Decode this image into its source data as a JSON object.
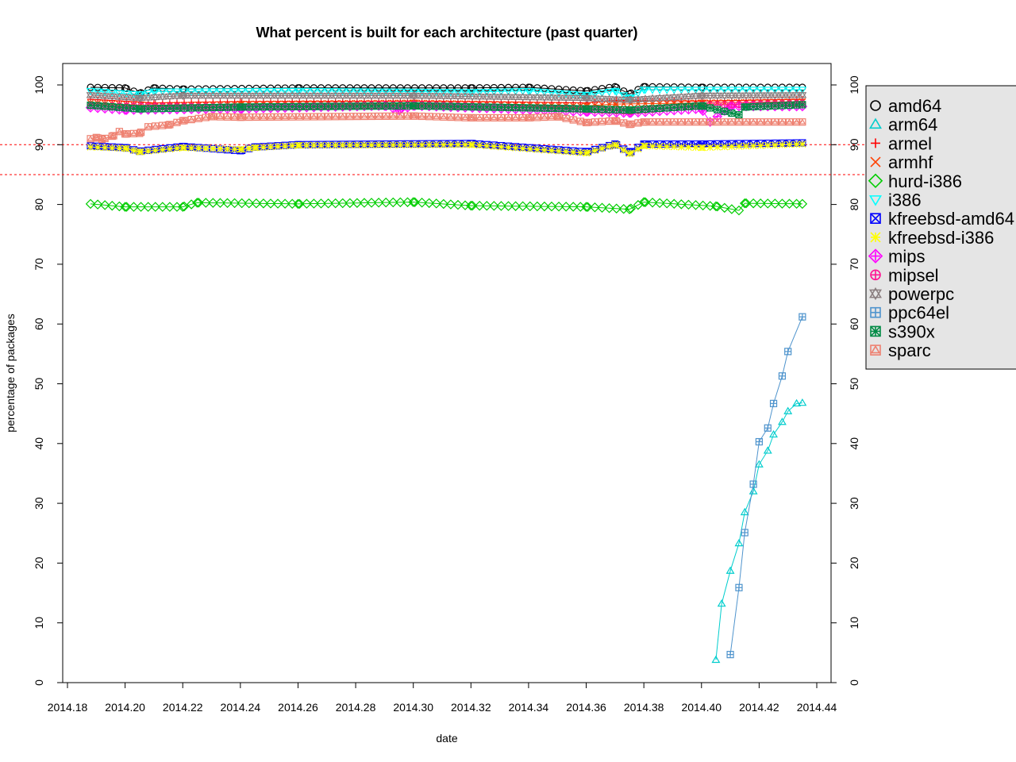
{
  "chart_data": {
    "type": "line",
    "title": "What percent is built for each architecture (past quarter)",
    "xlabel": "date",
    "ylabel": "percentage of packages",
    "xlim": [
      2014.18,
      2014.44
    ],
    "ylim": [
      0,
      100
    ],
    "x_ticks": [
      "2014.18",
      "2014.20",
      "2014.22",
      "2014.24",
      "2014.26",
      "2014.28",
      "2014.30",
      "2014.32",
      "2014.34",
      "2014.36",
      "2014.38",
      "2014.40",
      "2014.42",
      "2014.44"
    ],
    "y_ticks": [
      "0",
      "10",
      "20",
      "30",
      "40",
      "50",
      "60",
      "70",
      "80",
      "90",
      "100"
    ],
    "reference_lines": [
      90,
      85
    ],
    "reference_line_color": "#ff0000",
    "legend_position": "right, outside plot",
    "grid": false,
    "series": [
      {
        "name": "amd64",
        "color": "#000000",
        "marker": "circle",
        "x": [
          2014.188,
          2014.2,
          2014.205,
          2014.21,
          2014.22,
          2014.26,
          2014.32,
          2014.34,
          2014.36,
          2014.37,
          2014.375,
          2014.38,
          2014.4,
          2014.435
        ],
        "y": [
          99.6,
          99.5,
          98.6,
          99.5,
          99.3,
          99.5,
          99.5,
          99.6,
          99.0,
          99.7,
          98.5,
          99.7,
          99.6,
          99.6
        ]
      },
      {
        "name": "arm64",
        "color": "#00cdcd",
        "marker": "triangle-up",
        "x": [
          2014.405,
          2014.407,
          2014.41,
          2014.413,
          2014.415,
          2014.418,
          2014.42,
          2014.423,
          2014.425,
          2014.428,
          2014.43,
          2014.433,
          2014.435
        ],
        "y": [
          3.8,
          13.2,
          18.7,
          23.3,
          28.5,
          32.0,
          36.5,
          38.8,
          41.5,
          43.6,
          45.4,
          46.7,
          46.8
        ]
      },
      {
        "name": "armel",
        "color": "#ff0000",
        "marker": "plus",
        "x": [
          2014.188,
          2014.21,
          2014.24,
          2014.3,
          2014.36,
          2014.37,
          2014.4,
          2014.435
        ],
        "y": [
          97.6,
          97.0,
          97.2,
          97.3,
          97.0,
          97.4,
          97.3,
          97.6
        ]
      },
      {
        "name": "armhf",
        "color": "#ff4000",
        "marker": "x",
        "x": [
          2014.188,
          2014.21,
          2014.24,
          2014.3,
          2014.36,
          2014.37,
          2014.4,
          2014.435
        ],
        "y": [
          97.0,
          96.5,
          96.8,
          97.0,
          96.5,
          96.8,
          97.0,
          97.2
        ]
      },
      {
        "name": "hurd-i386",
        "color": "#00cd00",
        "marker": "diamond",
        "x": [
          2014.188,
          2014.2,
          2014.22,
          2014.225,
          2014.26,
          2014.3,
          2014.32,
          2014.36,
          2014.375,
          2014.38,
          2014.405,
          2014.413,
          2014.415,
          2014.435
        ],
        "y": [
          80.1,
          79.6,
          79.6,
          80.3,
          80.1,
          80.4,
          79.8,
          79.6,
          79.2,
          80.4,
          79.7,
          79.0,
          80.2,
          80.1
        ]
      },
      {
        "name": "i386",
        "color": "#00ffff",
        "marker": "triangle-down",
        "x": [
          2014.188,
          2014.205,
          2014.21,
          2014.26,
          2014.32,
          2014.34,
          2014.36,
          2014.37,
          2014.375,
          2014.38,
          2014.435
        ],
        "y": [
          99.0,
          98.4,
          98.9,
          99.0,
          98.8,
          99.0,
          98.3,
          99.0,
          97.8,
          99.2,
          99.2
        ]
      },
      {
        "name": "kfreebsd-amd64",
        "color": "#0000ff",
        "marker": "box-x",
        "x": [
          2014.188,
          2014.2,
          2014.205,
          2014.22,
          2014.24,
          2014.245,
          2014.26,
          2014.32,
          2014.36,
          2014.37,
          2014.375,
          2014.38,
          2014.4,
          2014.435
        ],
        "y": [
          89.8,
          89.5,
          88.9,
          89.7,
          89.0,
          89.6,
          90.0,
          90.2,
          88.8,
          90.1,
          88.7,
          90.1,
          90.1,
          90.3
        ]
      },
      {
        "name": "kfreebsd-i386",
        "color": "#ffff00",
        "marker": "star",
        "x": [
          2014.188,
          2014.2,
          2014.205,
          2014.22,
          2014.24,
          2014.245,
          2014.26,
          2014.32,
          2014.36,
          2014.37,
          2014.375,
          2014.38,
          2014.4,
          2014.435
        ],
        "y": [
          89.6,
          89.4,
          88.8,
          89.5,
          89.2,
          89.5,
          89.9,
          90.0,
          88.6,
          90.0,
          88.5,
          89.8,
          89.5,
          90.1
        ]
      },
      {
        "name": "mips",
        "color": "#ff00ff",
        "marker": "diamond-plus",
        "x": [
          2014.188,
          2014.2,
          2014.24,
          2014.29,
          2014.295,
          2014.3,
          2014.36,
          2014.375,
          2014.4,
          2014.403,
          2014.41,
          2014.435
        ],
        "y": [
          96.2,
          95.8,
          96.0,
          96.5,
          95.8,
          96.5,
          95.5,
          95.3,
          96.0,
          93.8,
          96.4,
          96.4
        ]
      },
      {
        "name": "mipsel",
        "color": "#ff1493",
        "marker": "circle-plus",
        "x": [
          2014.188,
          2014.24,
          2014.3,
          2014.36,
          2014.375,
          2014.4,
          2014.435
        ],
        "y": [
          96.5,
          96.3,
          96.7,
          95.9,
          95.6,
          96.6,
          96.9
        ]
      },
      {
        "name": "powerpc",
        "color": "#8b7f80",
        "marker": "hexagram",
        "x": [
          2014.188,
          2014.205,
          2014.22,
          2014.3,
          2014.36,
          2014.375,
          2014.4,
          2014.435
        ],
        "y": [
          98.3,
          97.8,
          98.2,
          98.2,
          97.8,
          97.5,
          98.2,
          98.3
        ]
      },
      {
        "name": "ppc64el",
        "color": "#4f94cd",
        "marker": "box-plus",
        "x": [
          2014.41,
          2014.413,
          2014.415,
          2014.418,
          2014.42,
          2014.423,
          2014.425,
          2014.428,
          2014.43,
          2014.435
        ],
        "y": [
          4.7,
          15.9,
          25.1,
          33.2,
          40.3,
          42.6,
          46.7,
          51.3,
          55.4,
          61.2
        ]
      },
      {
        "name": "s390x",
        "color": "#008b45",
        "marker": "box-cross",
        "x": [
          2014.188,
          2014.205,
          2014.24,
          2014.3,
          2014.36,
          2014.375,
          2014.4,
          2014.413,
          2014.415,
          2014.435
        ],
        "y": [
          96.6,
          96.0,
          96.3,
          96.5,
          96.0,
          95.8,
          96.5,
          95.0,
          96.3,
          96.7
        ]
      },
      {
        "name": "sparc",
        "color": "#ee8070",
        "marker": "box-triangle",
        "x": [
          2014.188,
          2014.19,
          2014.192,
          2014.196,
          2014.198,
          2014.2,
          2014.205,
          2014.208,
          2014.215,
          2014.22,
          2014.23,
          2014.24,
          2014.3,
          2014.32,
          2014.34,
          2014.35,
          2014.36,
          2014.37,
          2014.375,
          2014.38,
          2014.435
        ],
        "y": [
          91.0,
          91.2,
          90.9,
          91.5,
          92.2,
          91.8,
          91.9,
          93.0,
          93.3,
          94.0,
          94.7,
          94.6,
          94.8,
          94.5,
          94.5,
          94.7,
          93.7,
          94.0,
          93.4,
          93.8,
          93.8
        ]
      }
    ]
  }
}
